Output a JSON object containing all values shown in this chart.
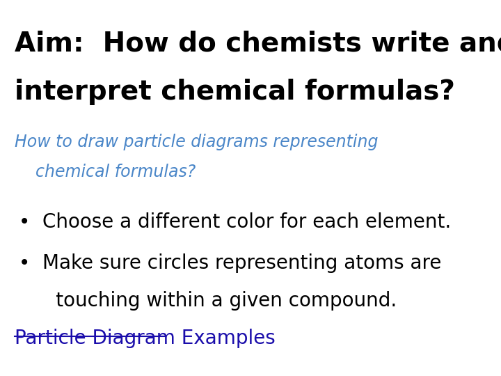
{
  "background_color": "#ffffff",
  "title_line1": "Aim:  How do chemists write and",
  "title_line2": "interpret chemical formulas?",
  "title_color": "#000000",
  "title_fontsize": 28,
  "subtitle_line1": "How to draw particle diagrams representing",
  "subtitle_line2": "    chemical formulas?",
  "subtitle_color": "#4a86c8",
  "subtitle_fontsize": 17,
  "bullet1": "Choose a different color for each element.",
  "bullet2_line1": "Make sure circles representing atoms are",
  "bullet2_line2": "touching within a given compound.",
  "bullet_color": "#000000",
  "bullet_fontsize": 20,
  "link_text": "Particle Diagram Examples",
  "link_color": "#1a0dab",
  "link_fontsize": 20
}
